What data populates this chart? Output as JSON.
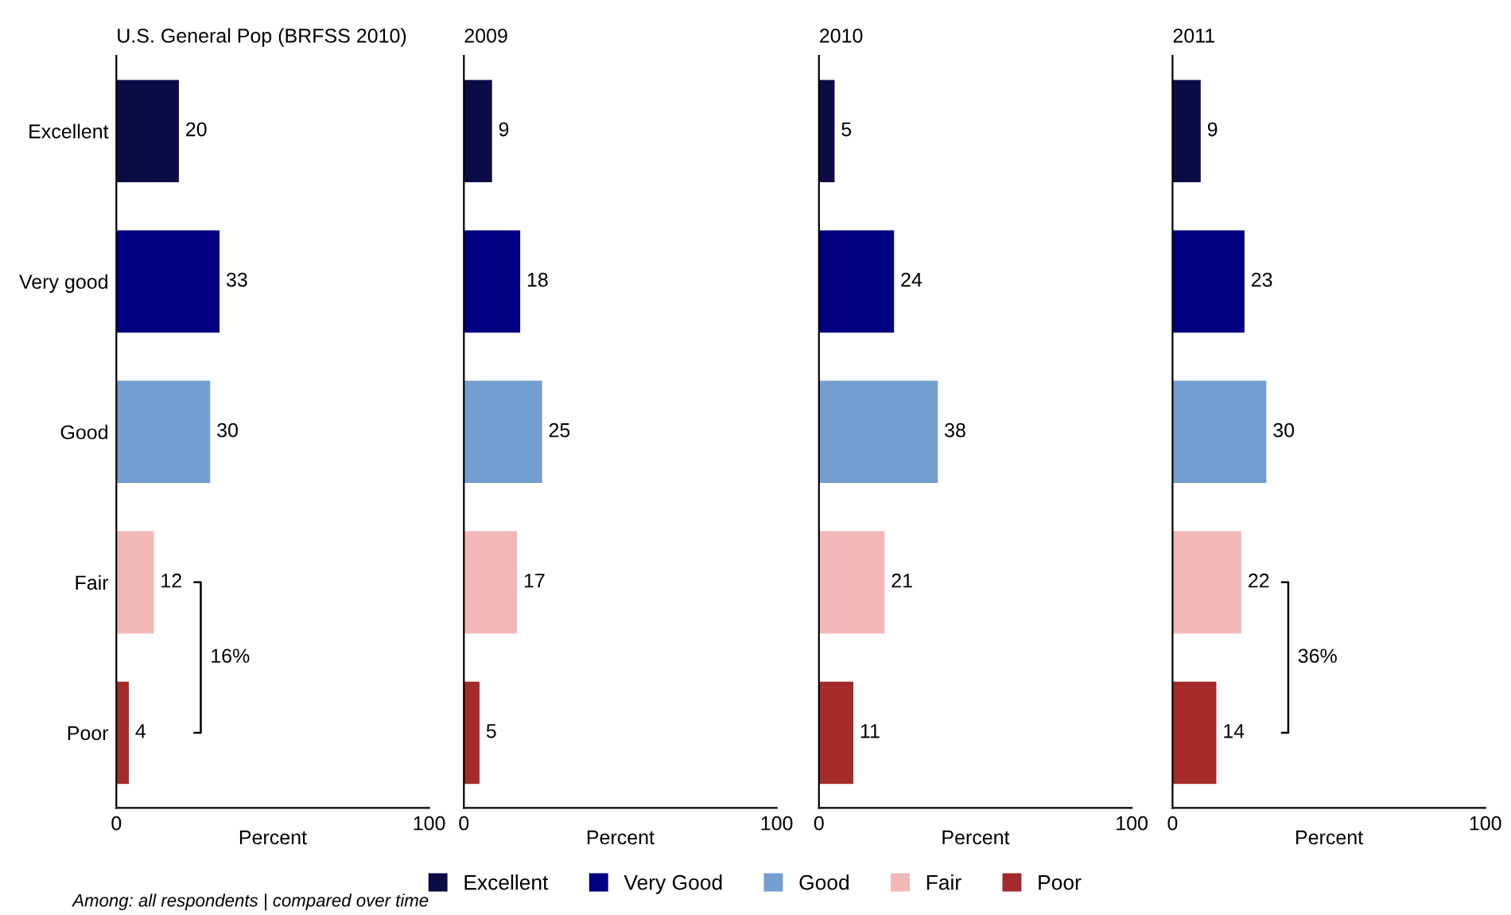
{
  "chart_data": [
    {
      "type": "bar",
      "orientation": "horizontal",
      "title": "U.S. General Pop (BRFSS 2010)",
      "xlabel": "Percent",
      "categories": [
        "Excellent",
        "Very good",
        "Good",
        "Fair",
        "Poor"
      ],
      "xlim": [
        0,
        100
      ],
      "xticks": [
        0,
        100
      ],
      "data_labels": true,
      "legend": "bottom",
      "grid": false,
      "annotations": [
        "16%",
        "Among: all respondents | compared over time"
      ],
      "series": [
        {
          "name": "Excellent",
          "color": "#0b0b45",
          "values": [
            20,
            null,
            null,
            null,
            null
          ]
        },
        {
          "name": "Very Good",
          "color": "#000080",
          "values": [
            null,
            33,
            null,
            null,
            null
          ]
        },
        {
          "name": "Good",
          "color": "#729fcf",
          "values": [
            null,
            null,
            30,
            null,
            null
          ]
        },
        {
          "name": "Fair",
          "color": "#f2b8b8",
          "values": [
            null,
            null,
            null,
            12,
            null
          ]
        },
        {
          "name": "Poor",
          "color": "#a52a2a",
          "values": [
            null,
            null,
            null,
            null,
            4
          ]
        }
      ]
    },
    {
      "type": "bar",
      "orientation": "horizontal",
      "title": "2009",
      "xlabel": "Percent",
      "categories": [
        null,
        null,
        null,
        null,
        null
      ],
      "xlim": [
        0,
        100
      ],
      "xticks": [
        0,
        100
      ],
      "data_labels": true,
      "tick_labels": "x",
      "grid": false,
      "series": [
        {
          "color": "#0b0b45",
          "values": [
            9,
            null,
            null,
            null,
            null
          ]
        },
        {
          "color": "#000080",
          "values": [
            null,
            18,
            null,
            null,
            null
          ]
        },
        {
          "color": "#729fcf",
          "values": [
            null,
            null,
            25,
            null,
            null
          ]
        },
        {
          "color": "#f2b8b8",
          "values": [
            null,
            null,
            null,
            17,
            null
          ]
        },
        {
          "color": "#a52a2a",
          "values": [
            null,
            null,
            null,
            null,
            5
          ]
        }
      ]
    },
    {
      "type": "bar",
      "orientation": "horizontal",
      "title": "2010",
      "xlabel": "Percent",
      "categories": [
        null,
        null,
        null,
        null,
        null
      ],
      "xlim": [
        0,
        100
      ],
      "xticks": [
        0,
        100
      ],
      "data_labels": true,
      "tick_labels": "x",
      "grid": false,
      "series": [
        {
          "color": "#0b0b45",
          "values": [
            5,
            null,
            null,
            null,
            null
          ]
        },
        {
          "color": "#000080",
          "values": [
            null,
            24,
            null,
            null,
            null
          ]
        },
        {
          "color": "#729fcf",
          "values": [
            null,
            null,
            38,
            null,
            null
          ]
        },
        {
          "color": "#f2b8b8",
          "values": [
            null,
            null,
            null,
            21,
            null
          ]
        },
        {
          "color": "#a52a2a",
          "values": [
            null,
            null,
            null,
            null,
            11
          ]
        }
      ]
    },
    {
      "type": "bar",
      "orientation": "horizontal",
      "title": "2011",
      "xlabel": "Percent",
      "categories": [
        null,
        null,
        null,
        null,
        null
      ],
      "xlim": [
        0,
        100
      ],
      "xticks": [
        0,
        100
      ],
      "data_labels": true,
      "tick_labels": "x",
      "grid": false,
      "annotations": [
        "36%"
      ],
      "series": [
        {
          "color": "#0b0b45",
          "values": [
            9,
            null,
            null,
            null,
            null
          ]
        },
        {
          "color": "#000080",
          "values": [
            null,
            23,
            null,
            null,
            null
          ]
        },
        {
          "color": "#729fcf",
          "values": [
            null,
            null,
            30,
            null,
            null
          ]
        },
        {
          "color": "#f2b8b8",
          "values": [
            null,
            null,
            null,
            22,
            null
          ]
        },
        {
          "color": "#a52a2a",
          "values": [
            null,
            null,
            null,
            null,
            14
          ]
        }
      ]
    }
  ]
}
